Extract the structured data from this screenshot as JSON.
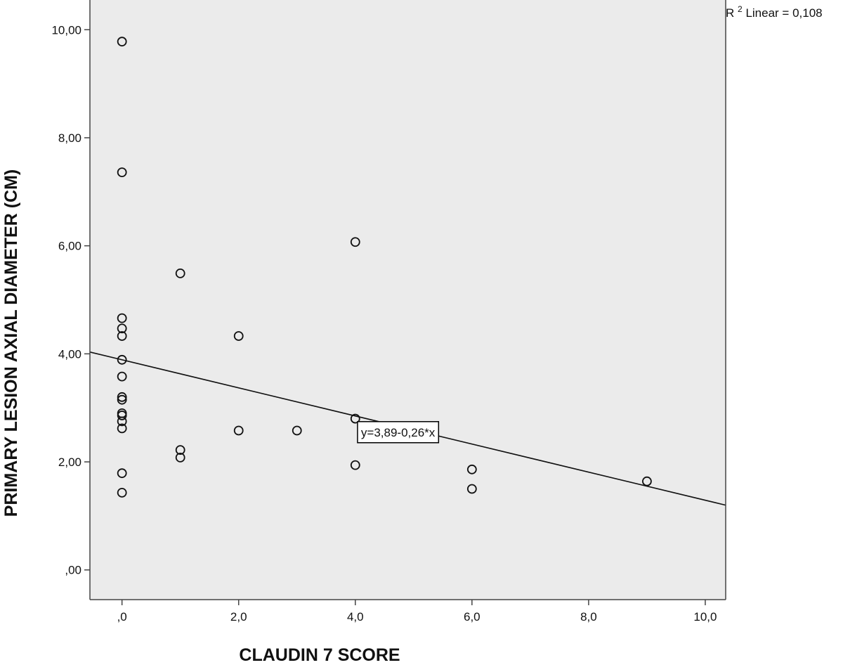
{
  "chart_data": {
    "type": "scatter",
    "title": "",
    "xlabel": "CLAUDIN 7 SCORE",
    "ylabel": "PRIMARY LESION AXIAL DIAMETER (CM)",
    "xlim": [
      -0.55,
      10.35
    ],
    "ylim": [
      -0.55,
      10.55
    ],
    "x_ticks": [
      0,
      2,
      4,
      6,
      8,
      10
    ],
    "x_tick_labels": [
      ",0",
      "2,0",
      "4,0",
      "6,0",
      "8,0",
      "10,0"
    ],
    "y_ticks": [
      0,
      2,
      4,
      6,
      8,
      10
    ],
    "y_tick_labels": [
      ",00",
      "2,00",
      "4,00",
      "6,00",
      "8,00",
      "10,00"
    ],
    "grid": false,
    "background_color": "#ebebeb",
    "marker": "hollow-circle",
    "points": [
      {
        "x": 0,
        "y": 9.78
      },
      {
        "x": 0,
        "y": 7.36
      },
      {
        "x": 0,
        "y": 4.66
      },
      {
        "x": 0,
        "y": 4.47
      },
      {
        "x": 0,
        "y": 4.33
      },
      {
        "x": 0,
        "y": 3.89
      },
      {
        "x": 0,
        "y": 3.58
      },
      {
        "x": 0,
        "y": 3.2
      },
      {
        "x": 0,
        "y": 3.15
      },
      {
        "x": 0,
        "y": 2.9
      },
      {
        "x": 0,
        "y": 2.86
      },
      {
        "x": 0,
        "y": 2.75
      },
      {
        "x": 0,
        "y": 2.62
      },
      {
        "x": 0,
        "y": 1.79
      },
      {
        "x": 0,
        "y": 1.43
      },
      {
        "x": 1,
        "y": 5.49
      },
      {
        "x": 1,
        "y": 2.22
      },
      {
        "x": 1,
        "y": 2.08
      },
      {
        "x": 2,
        "y": 4.33
      },
      {
        "x": 2,
        "y": 2.58
      },
      {
        "x": 3,
        "y": 2.58
      },
      {
        "x": 4,
        "y": 6.07
      },
      {
        "x": 4,
        "y": 2.8
      },
      {
        "x": 4,
        "y": 1.94
      },
      {
        "x": 6,
        "y": 1.86
      },
      {
        "x": 6,
        "y": 1.5
      },
      {
        "x": 9,
        "y": 1.64
      }
    ],
    "fit_line": {
      "intercept": 3.89,
      "slope": -0.26,
      "equation_label": "y=3,89-0,26*x",
      "label_at": {
        "x": 4.05,
        "y": 2.55
      }
    },
    "r2_label": {
      "prefix": "R",
      "superscript": "2",
      "text": " Linear = 0,108"
    }
  }
}
